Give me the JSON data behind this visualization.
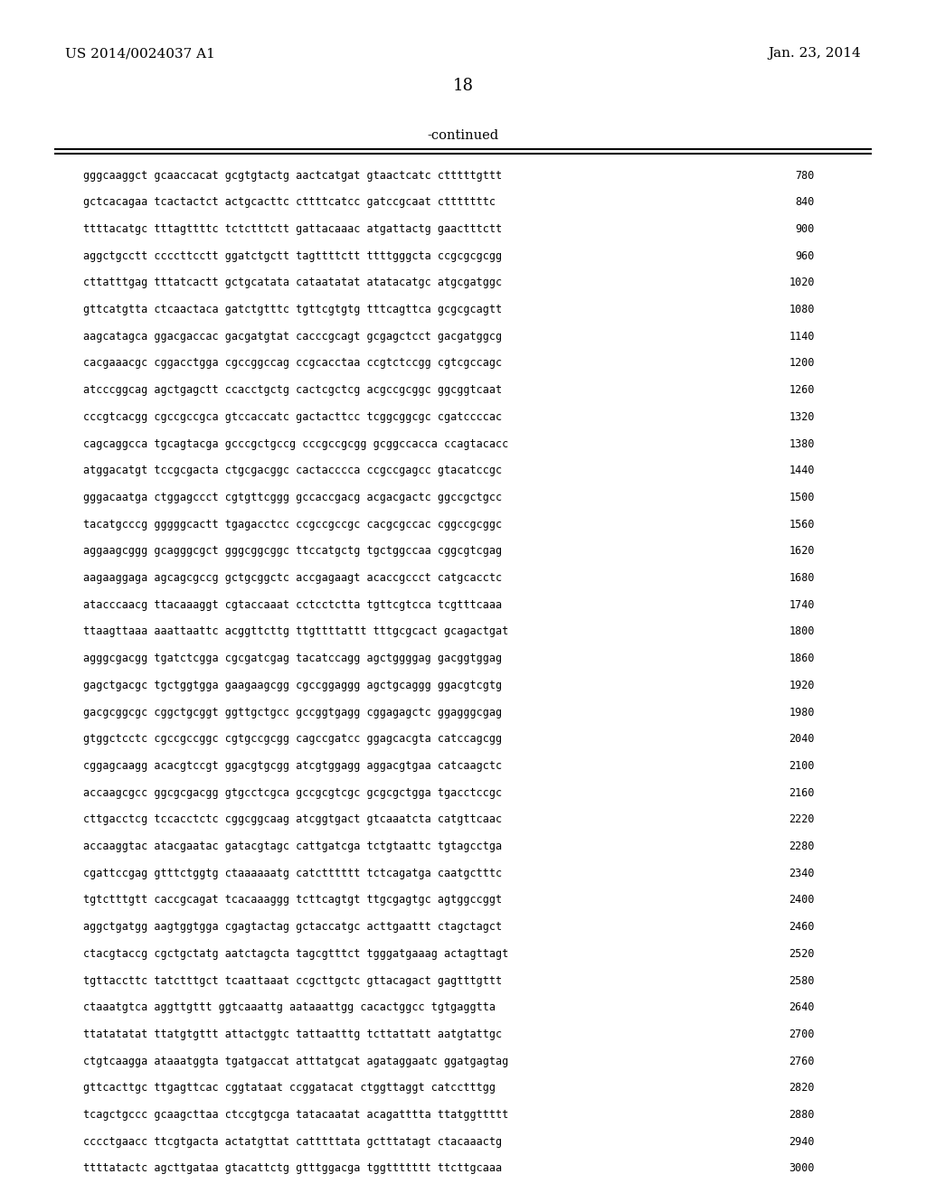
{
  "left_header": "US 2014/0024037 A1",
  "right_header": "Jan. 23, 2014",
  "page_number": "18",
  "continued_label": "-continued",
  "background_color": "#ffffff",
  "text_color": "#000000",
  "sequence_lines": [
    [
      "gggcaaggct gcaaccacat gcgtgtactg aactcatgat gtaactcatc ctttttgttt",
      "780"
    ],
    [
      "gctcacagaa tcactactct actgcacttc cttttcatcc gatccgcaat ctttttttc",
      "840"
    ],
    [
      "ttttacatgc tttagttttc tctctttctt gattacaaac atgattactg gaactttctt",
      "900"
    ],
    [
      "aggctgcctt ccccttcctt ggatctgctt tagttttctt ttttgggcta ccgcgcgcgg",
      "960"
    ],
    [
      "cttatttgag tttatcactt gctgcatata cataatatat atatacatgc atgcgatggc",
      "1020"
    ],
    [
      "gttcatgtta ctcaactaca gatctgtttc tgttcgtgtg tttcagttca gcgcgcagtt",
      "1080"
    ],
    [
      "aagcatagca ggacgaccac gacgatgtat cacccgcagt gcgagctcct gacgatggcg",
      "1140"
    ],
    [
      "cacgaaacgc cggacctgga cgccggccag ccgcacctaa ccgtctccgg cgtcgccagc",
      "1200"
    ],
    [
      "atcccggcag agctgagctt ccacctgctg cactcgctcg acgccgcggc ggcggtcaat",
      "1260"
    ],
    [
      "cccgtcacgg cgccgccgca gtccaccatc gactacttcc tcggcggcgc cgatccccac",
      "1320"
    ],
    [
      "cagcaggcca tgcagtacga gcccgctgccg cccgccgcgg gcggccacca ccagtacacc",
      "1380"
    ],
    [
      "atggacatgt tccgcgacta ctgcgacggc cactacccca ccgccgagcc gtacatccgc",
      "1440"
    ],
    [
      "gggacaatga ctggagccct cgtgttcggg gccaccgacg acgacgactc ggccgctgcc",
      "1500"
    ],
    [
      "tacatgcccg gggggcactt tgagacctcc ccgccgccgc cacgcgccac cggccgcggc",
      "1560"
    ],
    [
      "aggaagcggg gcagggcgct gggcggcggc ttccatgctg tgctggccaa cggcgtcgag",
      "1620"
    ],
    [
      "aagaaggaga agcagcgccg gctgcggctc accgagaagt acaccgccct catgcacctc",
      "1680"
    ],
    [
      "atacccaacg ttacaaaggt cgtaccaaat cctcctctta tgttcgtcca tcgtttcaaa",
      "1740"
    ],
    [
      "ttaagttaaa aaattaattc acggttcttg ttgttttattt tttgcgcact gcagactgat",
      "1800"
    ],
    [
      "agggcgacgg tgatctcgga cgcgatcgag tacatccagg agctggggag gacggtggag",
      "1860"
    ],
    [
      "gagctgacgc tgctggtgga gaagaagcgg cgccggaggg agctgcaggg ggacgtcgtg",
      "1920"
    ],
    [
      "gacgcggcgc cggctgcggt ggttgctgcc gccggtgagg cggagagctc ggagggcgag",
      "1980"
    ],
    [
      "gtggctcctc cgccgccggc cgtgccgcgg cagccgatcc ggagcacgta catccagcgg",
      "2040"
    ],
    [
      "cggagcaagg acacgtccgt ggacgtgcgg atcgtggagg aggacgtgaa catcaagctc",
      "2100"
    ],
    [
      "accaagcgcc ggcgcgacgg gtgcctcgca gccgcgtcgc gcgcgctgga tgacctccgc",
      "2160"
    ],
    [
      "cttgacctcg tccacctctc cggcggcaag atcggtgact gtcaaatcta catgttcaac",
      "2220"
    ],
    [
      "accaaggtac atacgaatac gatacgtagc cattgatcga tctgtaattc tgtagcctga",
      "2280"
    ],
    [
      "cgattccgag gtttctggtg ctaaaaaatg catctttttt tctcagatga caatgctttc",
      "2340"
    ],
    [
      "tgtctttgtt caccgcagat tcacaaaggg tcttcagtgt ttgcgagtgc agtggccggt",
      "2400"
    ],
    [
      "aggctgatgg aagtggtgga cgagtactag gctaccatgc acttgaattt ctagctagct",
      "2460"
    ],
    [
      "ctacgtaccg cgctgctatg aatctagcta tagcgtttct tgggatgaaag actagttagt",
      "2520"
    ],
    [
      "tgttaccttc tatctttgct tcaattaaat ccgcttgctc gttacagact gagtttgttt",
      "2580"
    ],
    [
      "ctaaatgtca aggttgttt ggtcaaattg aataaattgg cacactggcc tgtgaggtta",
      "2640"
    ],
    [
      "ttatatatat ttatgtgttt attactggtc tattaatttg tcttattatt aatgtattgc",
      "2700"
    ],
    [
      "ctgtcaagga ataaatggta tgatgaccat atttatgcat agataggaatc ggatgagtag",
      "2760"
    ],
    [
      "gttcacttgc ttgagttcac cggtataat ccggatacat ctggttaggt catcctttgg",
      "2820"
    ],
    [
      "tcagctgccc gcaagcttaa ctccgtgcga tatacaatat acagatttta ttatggttttt",
      "2880"
    ],
    [
      "cccctgaacc ttcgtgacta actatgttat catttttata gctttatagt ctacaaactg",
      "2940"
    ],
    [
      "ttttatactc agcttgataa gtacattctg gtttggacga tggttttttt ttcttgcaaa",
      "3000"
    ]
  ]
}
